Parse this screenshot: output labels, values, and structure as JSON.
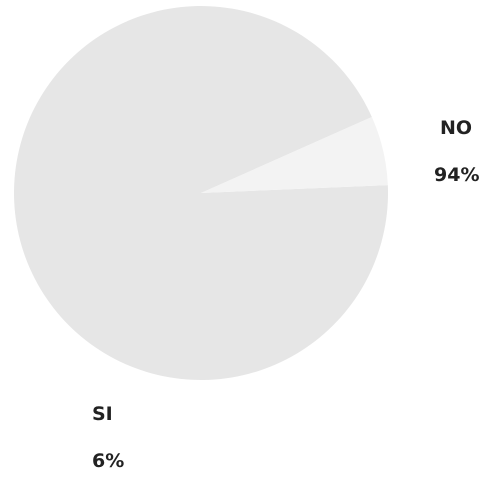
{
  "chart_data": {
    "type": "pie",
    "title": "",
    "slices": [
      {
        "name": "NO",
        "value": 94,
        "label": "94%",
        "color": "#e6e6e6"
      },
      {
        "name": "SI",
        "value": 6,
        "label": "6%",
        "color": "#f3f3f3"
      }
    ],
    "legend": "none"
  }
}
